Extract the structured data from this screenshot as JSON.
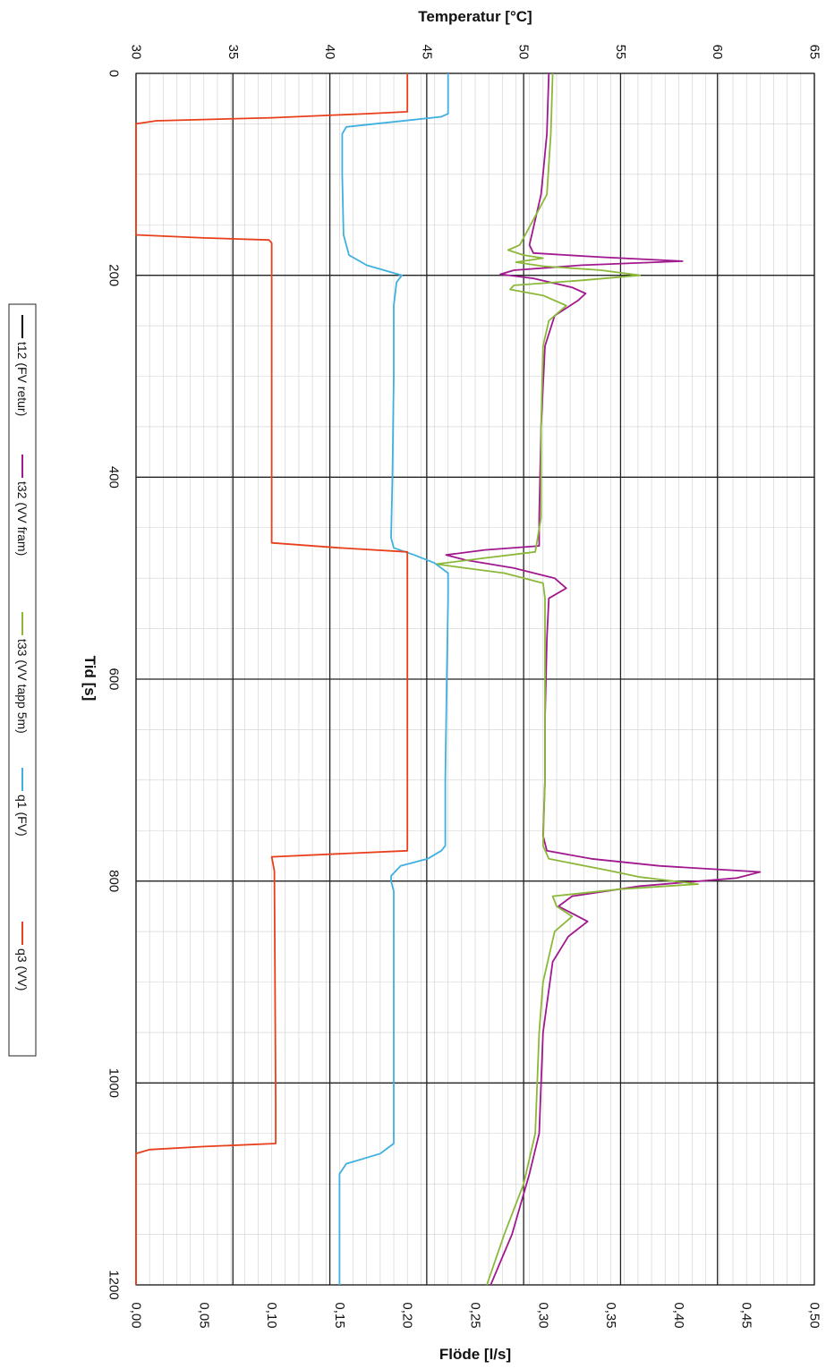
{
  "chart_data": {
    "type": "line",
    "orientation": "rotated-90-clockwise",
    "grid": true,
    "legend_position": "left",
    "time_axis": {
      "label": "Tid [s]",
      "range": [
        0,
        1200
      ],
      "ticks": [
        "0",
        "200",
        "400",
        "600",
        "800",
        "1000",
        "1200"
      ]
    },
    "temperature_axis": {
      "label": "Temperatur [°C]",
      "range": [
        30,
        65
      ],
      "ticks": [
        "30",
        "35",
        "40",
        "45",
        "50",
        "55",
        "60",
        "65"
      ]
    },
    "flow_axis": {
      "label": "Flöde [l/s]",
      "range": [
        0,
        0.5
      ],
      "ticks": [
        "0,00",
        "0,05",
        "0,10",
        "0,15",
        "0,20",
        "0,25",
        "0,30",
        "0,35",
        "0,40",
        "0,45",
        "0,50"
      ]
    },
    "series": [
      {
        "name": "t12 (FV retur)",
        "axis": "temperature",
        "color": "#000000",
        "points": []
      },
      {
        "name": "t32 (VV fram)",
        "axis": "temperature",
        "color": "#a0198e",
        "points": [
          [
            0,
            51.3
          ],
          [
            60,
            51.2
          ],
          [
            120,
            50.9
          ],
          [
            170,
            50.3
          ],
          [
            178,
            50.5
          ],
          [
            182,
            54
          ],
          [
            186,
            58.2
          ],
          [
            190,
            53
          ],
          [
            195,
            49.5
          ],
          [
            199,
            48.8
          ],
          [
            203,
            50.5
          ],
          [
            212,
            52.5
          ],
          [
            218,
            53.2
          ],
          [
            225,
            52.8
          ],
          [
            240,
            51.6
          ],
          [
            270,
            51.1
          ],
          [
            350,
            50.9
          ],
          [
            440,
            50.8
          ],
          [
            468,
            50.8
          ],
          [
            472,
            48
          ],
          [
            477,
            46
          ],
          [
            482,
            47
          ],
          [
            490,
            49.5
          ],
          [
            500,
            51.6
          ],
          [
            510,
            52.2
          ],
          [
            520,
            51.3
          ],
          [
            560,
            51.2
          ],
          [
            640,
            51.1
          ],
          [
            700,
            51.1
          ],
          [
            755,
            51
          ],
          [
            770,
            51.2
          ],
          [
            778,
            53.5
          ],
          [
            785,
            57
          ],
          [
            791,
            62.2
          ],
          [
            797,
            61
          ],
          [
            805,
            56
          ],
          [
            815,
            52.5
          ],
          [
            825,
            51.8
          ],
          [
            840,
            53.3
          ],
          [
            855,
            52.3
          ],
          [
            880,
            51.5
          ],
          [
            950,
            51
          ],
          [
            1050,
            50.8
          ],
          [
            1090,
            50.3
          ],
          [
            1150,
            49.4
          ],
          [
            1200,
            48.3
          ]
        ]
      },
      {
        "name": "t33 (VV tapp 5m)",
        "axis": "temperature",
        "color": "#8cb83a",
        "points": [
          [
            0,
            51.5
          ],
          [
            60,
            51.4
          ],
          [
            120,
            51.2
          ],
          [
            170,
            49.8
          ],
          [
            175,
            49.2
          ],
          [
            180,
            50
          ],
          [
            183,
            51
          ],
          [
            187,
            49.6
          ],
          [
            191,
            51
          ],
          [
            195,
            54
          ],
          [
            200,
            56
          ],
          [
            205,
            53
          ],
          [
            210,
            49.5
          ],
          [
            214,
            49.3
          ],
          [
            220,
            51
          ],
          [
            230,
            52.2
          ],
          [
            245,
            51.3
          ],
          [
            270,
            51
          ],
          [
            350,
            50.9
          ],
          [
            440,
            50.9
          ],
          [
            474,
            50.6
          ],
          [
            480,
            48
          ],
          [
            486,
            45.5
          ],
          [
            490,
            47
          ],
          [
            495,
            49
          ],
          [
            505,
            51
          ],
          [
            520,
            51.1
          ],
          [
            600,
            51.1
          ],
          [
            700,
            51.1
          ],
          [
            765,
            51
          ],
          [
            778,
            51.3
          ],
          [
            790,
            54.5
          ],
          [
            796,
            56
          ],
          [
            803,
            59
          ],
          [
            808,
            55
          ],
          [
            815,
            51.5
          ],
          [
            825,
            51.7
          ],
          [
            835,
            52.5
          ],
          [
            850,
            51.6
          ],
          [
            900,
            51
          ],
          [
            950,
            50.8
          ],
          [
            1050,
            50.6
          ],
          [
            1100,
            50
          ],
          [
            1150,
            49
          ],
          [
            1200,
            48.1
          ]
        ]
      },
      {
        "name": "q1 (FV)",
        "axis": "flow",
        "color": "#3fb0e0",
        "points": [
          [
            0,
            0.23
          ],
          [
            40,
            0.23
          ],
          [
            43,
            0.225
          ],
          [
            48,
            0.19
          ],
          [
            53,
            0.155
          ],
          [
            60,
            0.152
          ],
          [
            100,
            0.152
          ],
          [
            160,
            0.153
          ],
          [
            180,
            0.157
          ],
          [
            190,
            0.17
          ],
          [
            200,
            0.196
          ],
          [
            207,
            0.192
          ],
          [
            230,
            0.19
          ],
          [
            300,
            0.19
          ],
          [
            400,
            0.189
          ],
          [
            460,
            0.188
          ],
          [
            470,
            0.19
          ],
          [
            477,
            0.205
          ],
          [
            485,
            0.22
          ],
          [
            495,
            0.23
          ],
          [
            520,
            0.23
          ],
          [
            600,
            0.229
          ],
          [
            700,
            0.228
          ],
          [
            765,
            0.228
          ],
          [
            770,
            0.225
          ],
          [
            778,
            0.215
          ],
          [
            785,
            0.195
          ],
          [
            795,
            0.188
          ],
          [
            800,
            0.188
          ],
          [
            810,
            0.19
          ],
          [
            850,
            0.19
          ],
          [
            950,
            0.19
          ],
          [
            1060,
            0.19
          ],
          [
            1070,
            0.18
          ],
          [
            1080,
            0.155
          ],
          [
            1090,
            0.15
          ],
          [
            1200,
            0.15
          ]
        ]
      },
      {
        "name": "q3 (VV)",
        "axis": "flow",
        "color": "#e8401c",
        "points": [
          [
            0,
            0.2
          ],
          [
            38,
            0.2
          ],
          [
            40,
            0.17
          ],
          [
            44,
            0.1
          ],
          [
            47,
            0.015
          ],
          [
            50,
            0
          ],
          [
            160,
            0
          ],
          [
            163,
            0.05
          ],
          [
            165,
            0.098
          ],
          [
            168,
            0.1
          ],
          [
            465,
            0.1
          ],
          [
            470,
            0.15
          ],
          [
            474,
            0.2
          ],
          [
            770,
            0.2
          ],
          [
            773,
            0.15
          ],
          [
            776,
            0.1
          ],
          [
            790,
            0.102
          ],
          [
            1020,
            0.103
          ],
          [
            1060,
            0.103
          ],
          [
            1063,
            0.05
          ],
          [
            1066,
            0.01
          ],
          [
            1070,
            0
          ],
          [
            1200,
            0
          ]
        ]
      }
    ]
  }
}
